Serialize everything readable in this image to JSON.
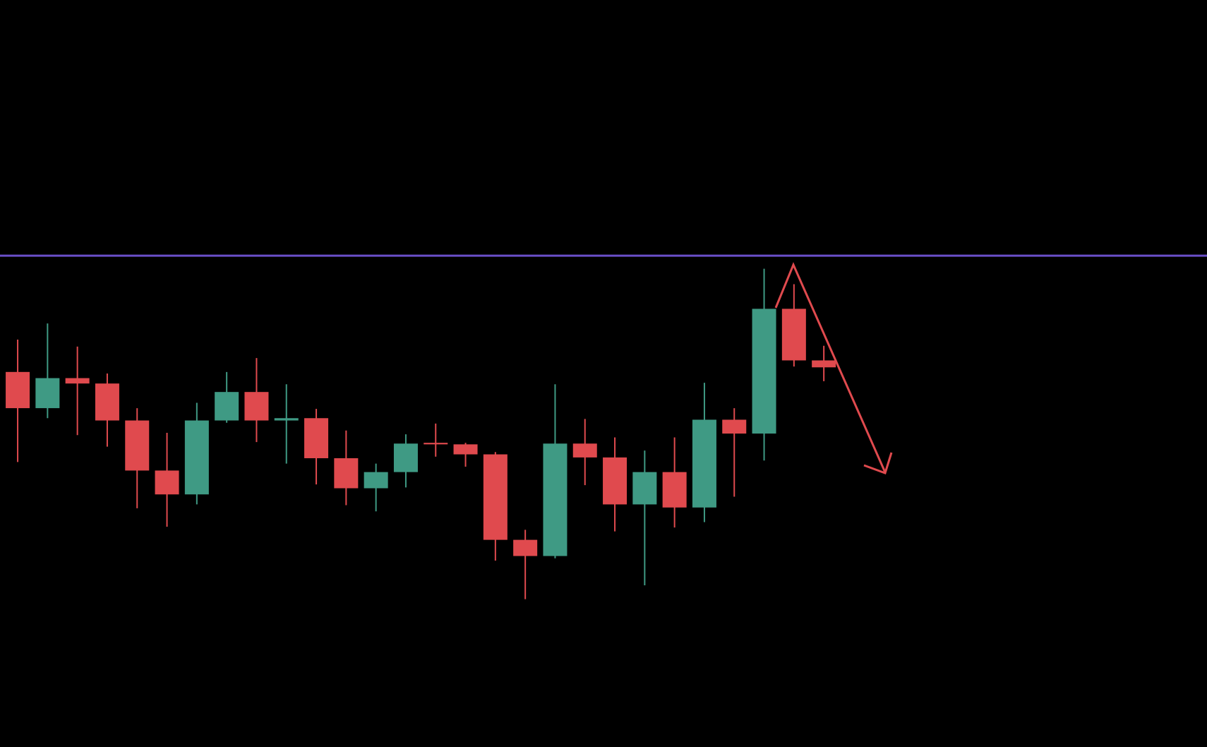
{
  "chart_data": {
    "type": "candlestick",
    "categories": [
      null,
      null,
      null,
      null,
      null,
      null,
      null,
      null,
      null,
      null,
      null,
      null,
      null,
      null,
      null,
      null,
      null,
      null,
      null,
      null,
      null,
      null,
      null,
      null,
      null,
      null,
      null,
      null
    ],
    "open": [
      487,
      440,
      479,
      472,
      424,
      359,
      328,
      424,
      461,
      424,
      427,
      375,
      336,
      357,
      395,
      393,
      380,
      269,
      248,
      394,
      376,
      315,
      357,
      311,
      425,
      407,
      569,
      502
    ],
    "high": [
      529,
      550,
      520,
      485,
      440,
      408,
      447,
      487,
      505,
      471,
      439,
      411,
      368,
      406,
      420,
      395,
      383,
      282,
      471,
      426,
      402,
      385,
      402,
      473,
      440,
      621,
      601,
      521
    ],
    "low": [
      370,
      427,
      405,
      390,
      310,
      286,
      315,
      421,
      396,
      368,
      341,
      314,
      306,
      337,
      377,
      364,
      242,
      192,
      245,
      340,
      280,
      210,
      285,
      292,
      325,
      372,
      494,
      475
    ],
    "close": [
      440,
      479,
      472,
      424,
      359,
      328,
      424,
      461,
      424,
      427,
      375,
      336,
      357,
      394,
      393,
      380,
      269,
      248,
      394,
      376,
      315,
      357,
      311,
      425,
      407,
      569,
      502,
      493
    ],
    "up_color": "#3f9a84",
    "down_color": "#e04a4e",
    "ylim": [
      0,
      970
    ],
    "hlines": [
      {
        "value": 638,
        "color": "#6a4fc8"
      }
    ]
  }
}
